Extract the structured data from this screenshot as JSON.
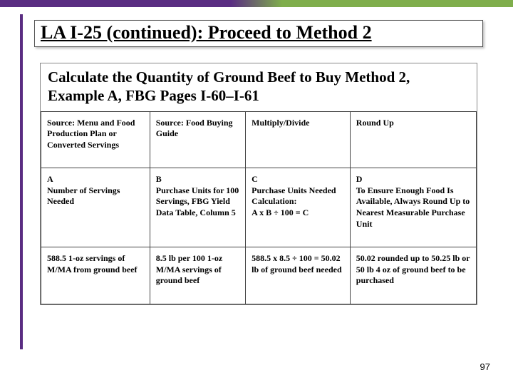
{
  "accent": {
    "left_color": "#5a2d82",
    "right_color": "#7fae4c"
  },
  "title": "LA I-25 (continued): Proceed to Method 2",
  "subtitle": "Calculate the Quantity of Ground Beef to Buy Method 2, Example A, FBG Pages I-60–I-61",
  "table": {
    "columns": [
      {
        "width_pct": 25
      },
      {
        "width_pct": 22
      },
      {
        "width_pct": 24
      },
      {
        "width_pct": 29
      }
    ],
    "rows": [
      [
        "Source: Menu and Food Production Plan or Converted Servings",
        "Source: Food Buying Guide",
        "Multiply/Divide",
        "Round Up"
      ],
      [
        "A\nNumber of Servings Needed",
        "B\nPurchase Units for 100 Servings, FBG Yield Data Table, Column 5",
        "C\nPurchase Units Needed\nCalculation:\nA x B ÷ 100 = C",
        "D\nTo Ensure Enough Food Is Available, Always Round Up to Nearest Measurable Purchase Unit"
      ],
      [
        "588.5 1-oz servings of M/MA from ground beef",
        "8.5 lb per 100 1-oz M/MA servings of ground beef",
        "588.5 x 8.5 ÷ 100 = 50.02 lb of ground beef needed",
        "50.02 rounded up to 50.25 lb or 50 lb 4 oz of ground beef to be purchased"
      ]
    ],
    "border_color": "#444444",
    "cell_fontsize": 12,
    "cell_fontweight": "bold"
  },
  "page_number": "97"
}
